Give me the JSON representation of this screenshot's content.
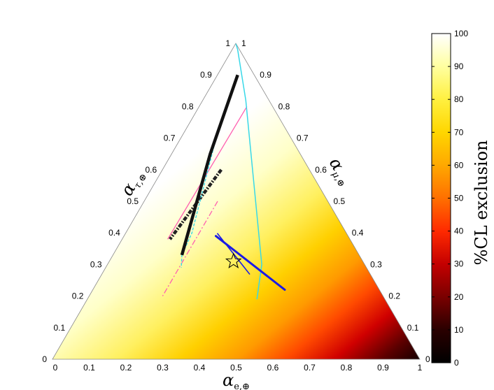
{
  "chart_data": {
    "type": "heatmap",
    "geometry": "ternary",
    "axes": {
      "bottom": {
        "label": "α_{e,⊕}",
        "ticks": [
          "0",
          "0.1",
          "0.2",
          "0.3",
          "0.4",
          "0.5",
          "0.6",
          "0.7",
          "0.8",
          "0.9",
          "1"
        ]
      },
      "left": {
        "label": "α_{τ,⊕}",
        "ticks": [
          "0",
          "0.1",
          "0.2",
          "0.3",
          "0.4",
          "0.5",
          "0.6",
          "0.7",
          "0.8",
          "0.9",
          "1"
        ]
      },
      "right": {
        "label": "α_{μ,⊕}",
        "ticks": [
          "1",
          "0.9",
          "0.8",
          "0.7",
          "0.6",
          "0.5",
          "0.4",
          "0.3",
          "0.2",
          "0.1",
          "0"
        ]
      }
    },
    "colorbar": {
      "label": "%CL exclusion",
      "range": [
        0,
        100
      ],
      "ticks": [
        "0",
        "10",
        "20",
        "30",
        "40",
        "50",
        "60",
        "70",
        "80",
        "90",
        "100"
      ],
      "colors": [
        "#000000",
        "#2a0000",
        "#7a0000",
        "#c40000",
        "#ff2a00",
        "#ff7000",
        "#ffa800",
        "#ffd600",
        "#fff040",
        "#ffffa0",
        "#ffffff"
      ]
    },
    "contours": [
      {
        "kind": "pink dash-dot",
        "color": "#ff5fb0",
        "points": [
          [
            0.4,
            0.5
          ],
          [
            0.25,
            0.2
          ]
        ]
      },
      {
        "kind": "black dash-dot",
        "color": "#222222",
        "points": [
          [
            0.4,
            0.6
          ],
          [
            0.21,
            0.38
          ]
        ]
      },
      {
        "kind": "pink solid",
        "color": "#ff5fb0",
        "points": [
          [
            0.65,
            0.8
          ],
          [
            0.2,
            0.38
          ]
        ]
      },
      {
        "kind": "cyan dashed",
        "color": "#38d8e8",
        "points": [
          [
            0.32,
            0.7
          ],
          [
            0.3,
            0.4
          ],
          [
            0.28,
            0.33
          ],
          [
            0.29,
            0.29
          ]
        ]
      },
      {
        "kind": "black solid",
        "color": "#111111",
        "points": [
          [
            0.55,
            0.9
          ],
          [
            0.3,
            0.65
          ],
          [
            0.28,
            0.33
          ]
        ]
      },
      {
        "kind": "cyan solid",
        "color": "#38d8e8",
        "points": [
          [
            0.96,
            1.0
          ],
          [
            0.75,
            0.98
          ],
          [
            0.65,
            0.82
          ],
          [
            0.6,
            0.3
          ],
          [
            0.57,
            0.19
          ]
        ]
      }
    ],
    "best_fit": {
      "kind": "blue",
      "color": "#1a1ae6",
      "points": [
        [
          0.41,
          0.39
        ],
        [
          0.67,
          0.22
        ]
      ]
    },
    "star": {
      "x": 0.49,
      "y": 0.31
    }
  }
}
